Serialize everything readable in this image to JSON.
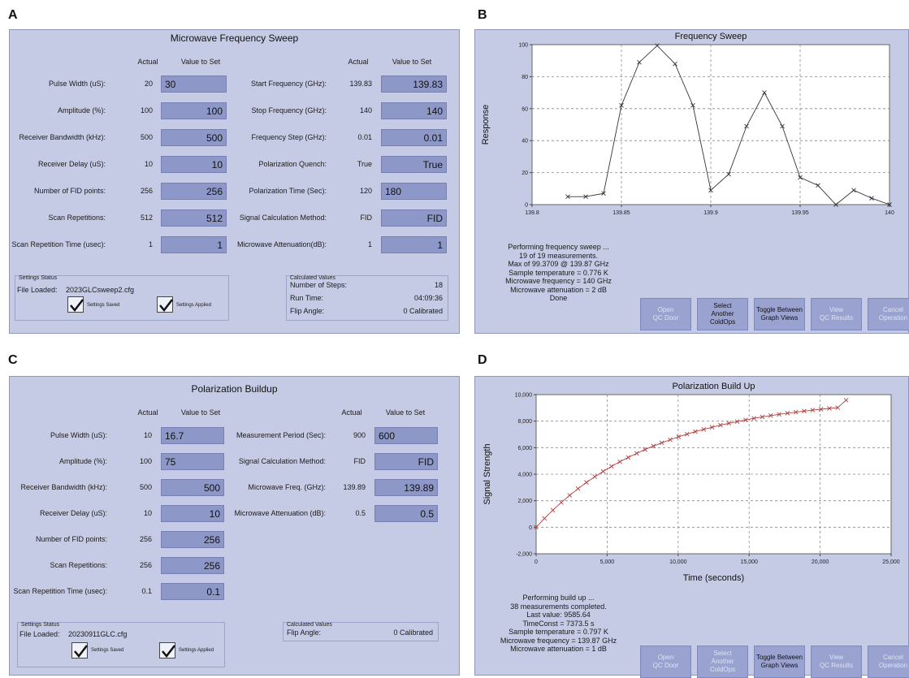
{
  "labels": {
    "a": "A",
    "b": "B",
    "c": "C",
    "d": "D"
  },
  "panel_a": {
    "title": "Microwave Frequency Sweep",
    "col_actual": "Actual",
    "col_value": "Value to Set",
    "left_rows": [
      {
        "label": "Pulse Width (uS):",
        "actual": "20",
        "value": "30"
      },
      {
        "label": "Amplitude (%):",
        "actual": "100",
        "value": "100"
      },
      {
        "label": "Receiver Bandwidth (kHz):",
        "actual": "500",
        "value": "500"
      },
      {
        "label": "Receiver Delay (uS):",
        "actual": "10",
        "value": "10"
      },
      {
        "label": "Number of FID points:",
        "actual": "256",
        "value": "256"
      },
      {
        "label": "Scan Repetitions:",
        "actual": "512",
        "value": "512"
      },
      {
        "label": "Scan Repetition Time (usec):",
        "actual": "1",
        "value": "1"
      }
    ],
    "right_rows": [
      {
        "label": "Start Frequency (GHz):",
        "actual": "139.83",
        "value": "139.83"
      },
      {
        "label": "Stop Frequency (GHz):",
        "actual": "140",
        "value": "140"
      },
      {
        "label": "Frequency Step (GHz):",
        "actual": "0.01",
        "value": "0.01"
      },
      {
        "label": "Polarization Quench:",
        "actual": "True",
        "value": "True"
      },
      {
        "label": "Polarization Time (Sec):",
        "actual": "120",
        "value": "180"
      },
      {
        "label": "Signal Calculation Method:",
        "actual": "FID",
        "value": "FID"
      },
      {
        "label": "Microwave Attenuation(dB):",
        "actual": "1",
        "value": "1"
      }
    ],
    "settings": {
      "group_label": "Settings Status",
      "file_label": "File Loaded:",
      "file": "2023GLCsweep2.cfg",
      "saved": "Settings Saved",
      "applied": "Settings Applied"
    },
    "calc": {
      "group_label": "Calculated Values",
      "rows": [
        {
          "label": "Number of Steps:",
          "value": "18"
        },
        {
          "label": "Run Time:",
          "value": "04:09:36"
        },
        {
          "label": "Flip Angle:",
          "value": "0 Calibrated"
        }
      ]
    }
  },
  "panel_b": {
    "status": "Performing frequency sweep ...\n19 of 19 measurements.\nMax of 99.3709 @ 139.87 GHz\nSample temperature = 0.776 K\nMicrowave frequency = 140 GHz\nMicrowave attenuation = 2 dB\nDone",
    "buttons": [
      {
        "label": "Open\nQC Door",
        "disabled": true
      },
      {
        "label": "Select\nAnother\nColdOps",
        "disabled": false
      },
      {
        "label": "Toggle Between\nGraph Views",
        "disabled": false
      },
      {
        "label": "View\nQC Results",
        "disabled": true
      },
      {
        "label": "Cancel\nOperation",
        "disabled": true
      }
    ]
  },
  "panel_c": {
    "title": "Polarization Buildup",
    "col_actual": "Actual",
    "col_value": "Value to Set",
    "left_rows": [
      {
        "label": "Pulse Width (uS):",
        "actual": "10",
        "value": "16.7"
      },
      {
        "label": "Amplitude (%):",
        "actual": "100",
        "value": "75"
      },
      {
        "label": "Receiver Bandwidth (kHz):",
        "actual": "500",
        "value": "500"
      },
      {
        "label": "Receiver Delay (uS):",
        "actual": "10",
        "value": "10"
      },
      {
        "label": "Number of FID points:",
        "actual": "256",
        "value": "256"
      },
      {
        "label": "Scan Repetitions:",
        "actual": "256",
        "value": "256"
      },
      {
        "label": "Scan Repetition Time (usec):",
        "actual": "0.1",
        "value": "0.1"
      }
    ],
    "right_rows": [
      {
        "label": "Measurement Period (Sec):",
        "actual": "900",
        "value": "600"
      },
      {
        "label": "Signal Calculation Method:",
        "actual": "FID",
        "value": "FID"
      },
      {
        "label": "Microwave Freq. (GHz):",
        "actual": "139.89",
        "value": "139.89"
      },
      {
        "label": "Microwave Attenuation (dB):",
        "actual": "0.5",
        "value": "0.5"
      }
    ],
    "settings": {
      "group_label": "Settings Status",
      "file_label": "File Loaded:",
      "file": "20230911GLC.cfg",
      "saved": "Settings Saved",
      "applied": "Settings Applied"
    },
    "calc": {
      "group_label": "Calculated Values",
      "rows": [
        {
          "label": "Flip Angle:",
          "value": "0 Calibrated"
        }
      ]
    }
  },
  "panel_d": {
    "status": "Performing build up ...\n38 measurements completed.\nLast value: 9585.64\nTimeConst = 7373.5 s\nSample temperature = 0.797 K\nMicrowave frequency = 139.87 GHz\nMicrowave attenuation = 1 dB",
    "buttons": [
      {
        "label": "Open\nQC Door",
        "disabled": true
      },
      {
        "label": "Select\nAnother\nColdOps",
        "disabled": true
      },
      {
        "label": "Toggle Between\nGraph Views",
        "disabled": false
      },
      {
        "label": "View\nQC Results",
        "disabled": true
      },
      {
        "label": "Cancel\nOperation",
        "disabled": true
      }
    ]
  },
  "colors": {
    "panel_bg": "#c5cbe4",
    "input_bg": "#8d97c8",
    "button_bg": "#9aa3cf",
    "b_line": "#333333",
    "d_line": "#b04040"
  },
  "chart_data": [
    {
      "type": "line",
      "title": "Frequency Sweep",
      "xlabel": "Frequency (GHz)",
      "ylabel": "Response",
      "xlim": [
        139.8,
        140
      ],
      "ylim": [
        0,
        100
      ],
      "x_ticks": [
        "139.8",
        "139.85",
        "139.9",
        "139.95",
        "140"
      ],
      "y_ticks": [
        "0",
        "20",
        "40",
        "60",
        "80",
        "100"
      ],
      "grid": true,
      "marker": "x",
      "x": [
        139.82,
        139.83,
        139.84,
        139.85,
        139.86,
        139.87,
        139.88,
        139.89,
        139.9,
        139.91,
        139.92,
        139.93,
        139.94,
        139.95,
        139.96,
        139.97,
        139.98,
        139.99,
        140.0
      ],
      "y": [
        5,
        5,
        7,
        62,
        89,
        99.4,
        88,
        62,
        9,
        19,
        49,
        70,
        49,
        17,
        12,
        0,
        9,
        4,
        0
      ]
    },
    {
      "type": "line",
      "title": "Polarization Build Up",
      "xlabel": "Time (seconds)",
      "ylabel": "Signal Strength",
      "xlim": [
        0,
        25000
      ],
      "ylim": [
        -2000,
        10000
      ],
      "x_ticks": [
        "0",
        "5,000",
        "10,000",
        "15,000",
        "20,000",
        "25,000"
      ],
      "y_ticks": [
        "-2,000",
        "0",
        "2,000",
        "4,000",
        "6,000",
        "8,000",
        "10,000"
      ],
      "grid": true,
      "marker": "x",
      "x": [
        0,
        590,
        1180,
        1770,
        2360,
        2950,
        3540,
        4130,
        4720,
        5310,
        5900,
        6490,
        7080,
        7670,
        8260,
        8850,
        9440,
        10030,
        10620,
        11210,
        11800,
        12390,
        12980,
        13570,
        14160,
        14750,
        15340,
        15930,
        16520,
        17110,
        17700,
        18290,
        18880,
        19470,
        20060,
        20650,
        21240,
        21830
      ],
      "y": [
        0,
        670,
        1290,
        1870,
        2410,
        2910,
        3380,
        3810,
        4210,
        4590,
        4940,
        5270,
        5570,
        5860,
        6120,
        6370,
        6600,
        6820,
        7020,
        7210,
        7380,
        7540,
        7700,
        7840,
        7970,
        8090,
        8210,
        8320,
        8420,
        8510,
        8600,
        8680,
        8760,
        8830,
        8900,
        8960,
        9020,
        9586
      ]
    }
  ]
}
